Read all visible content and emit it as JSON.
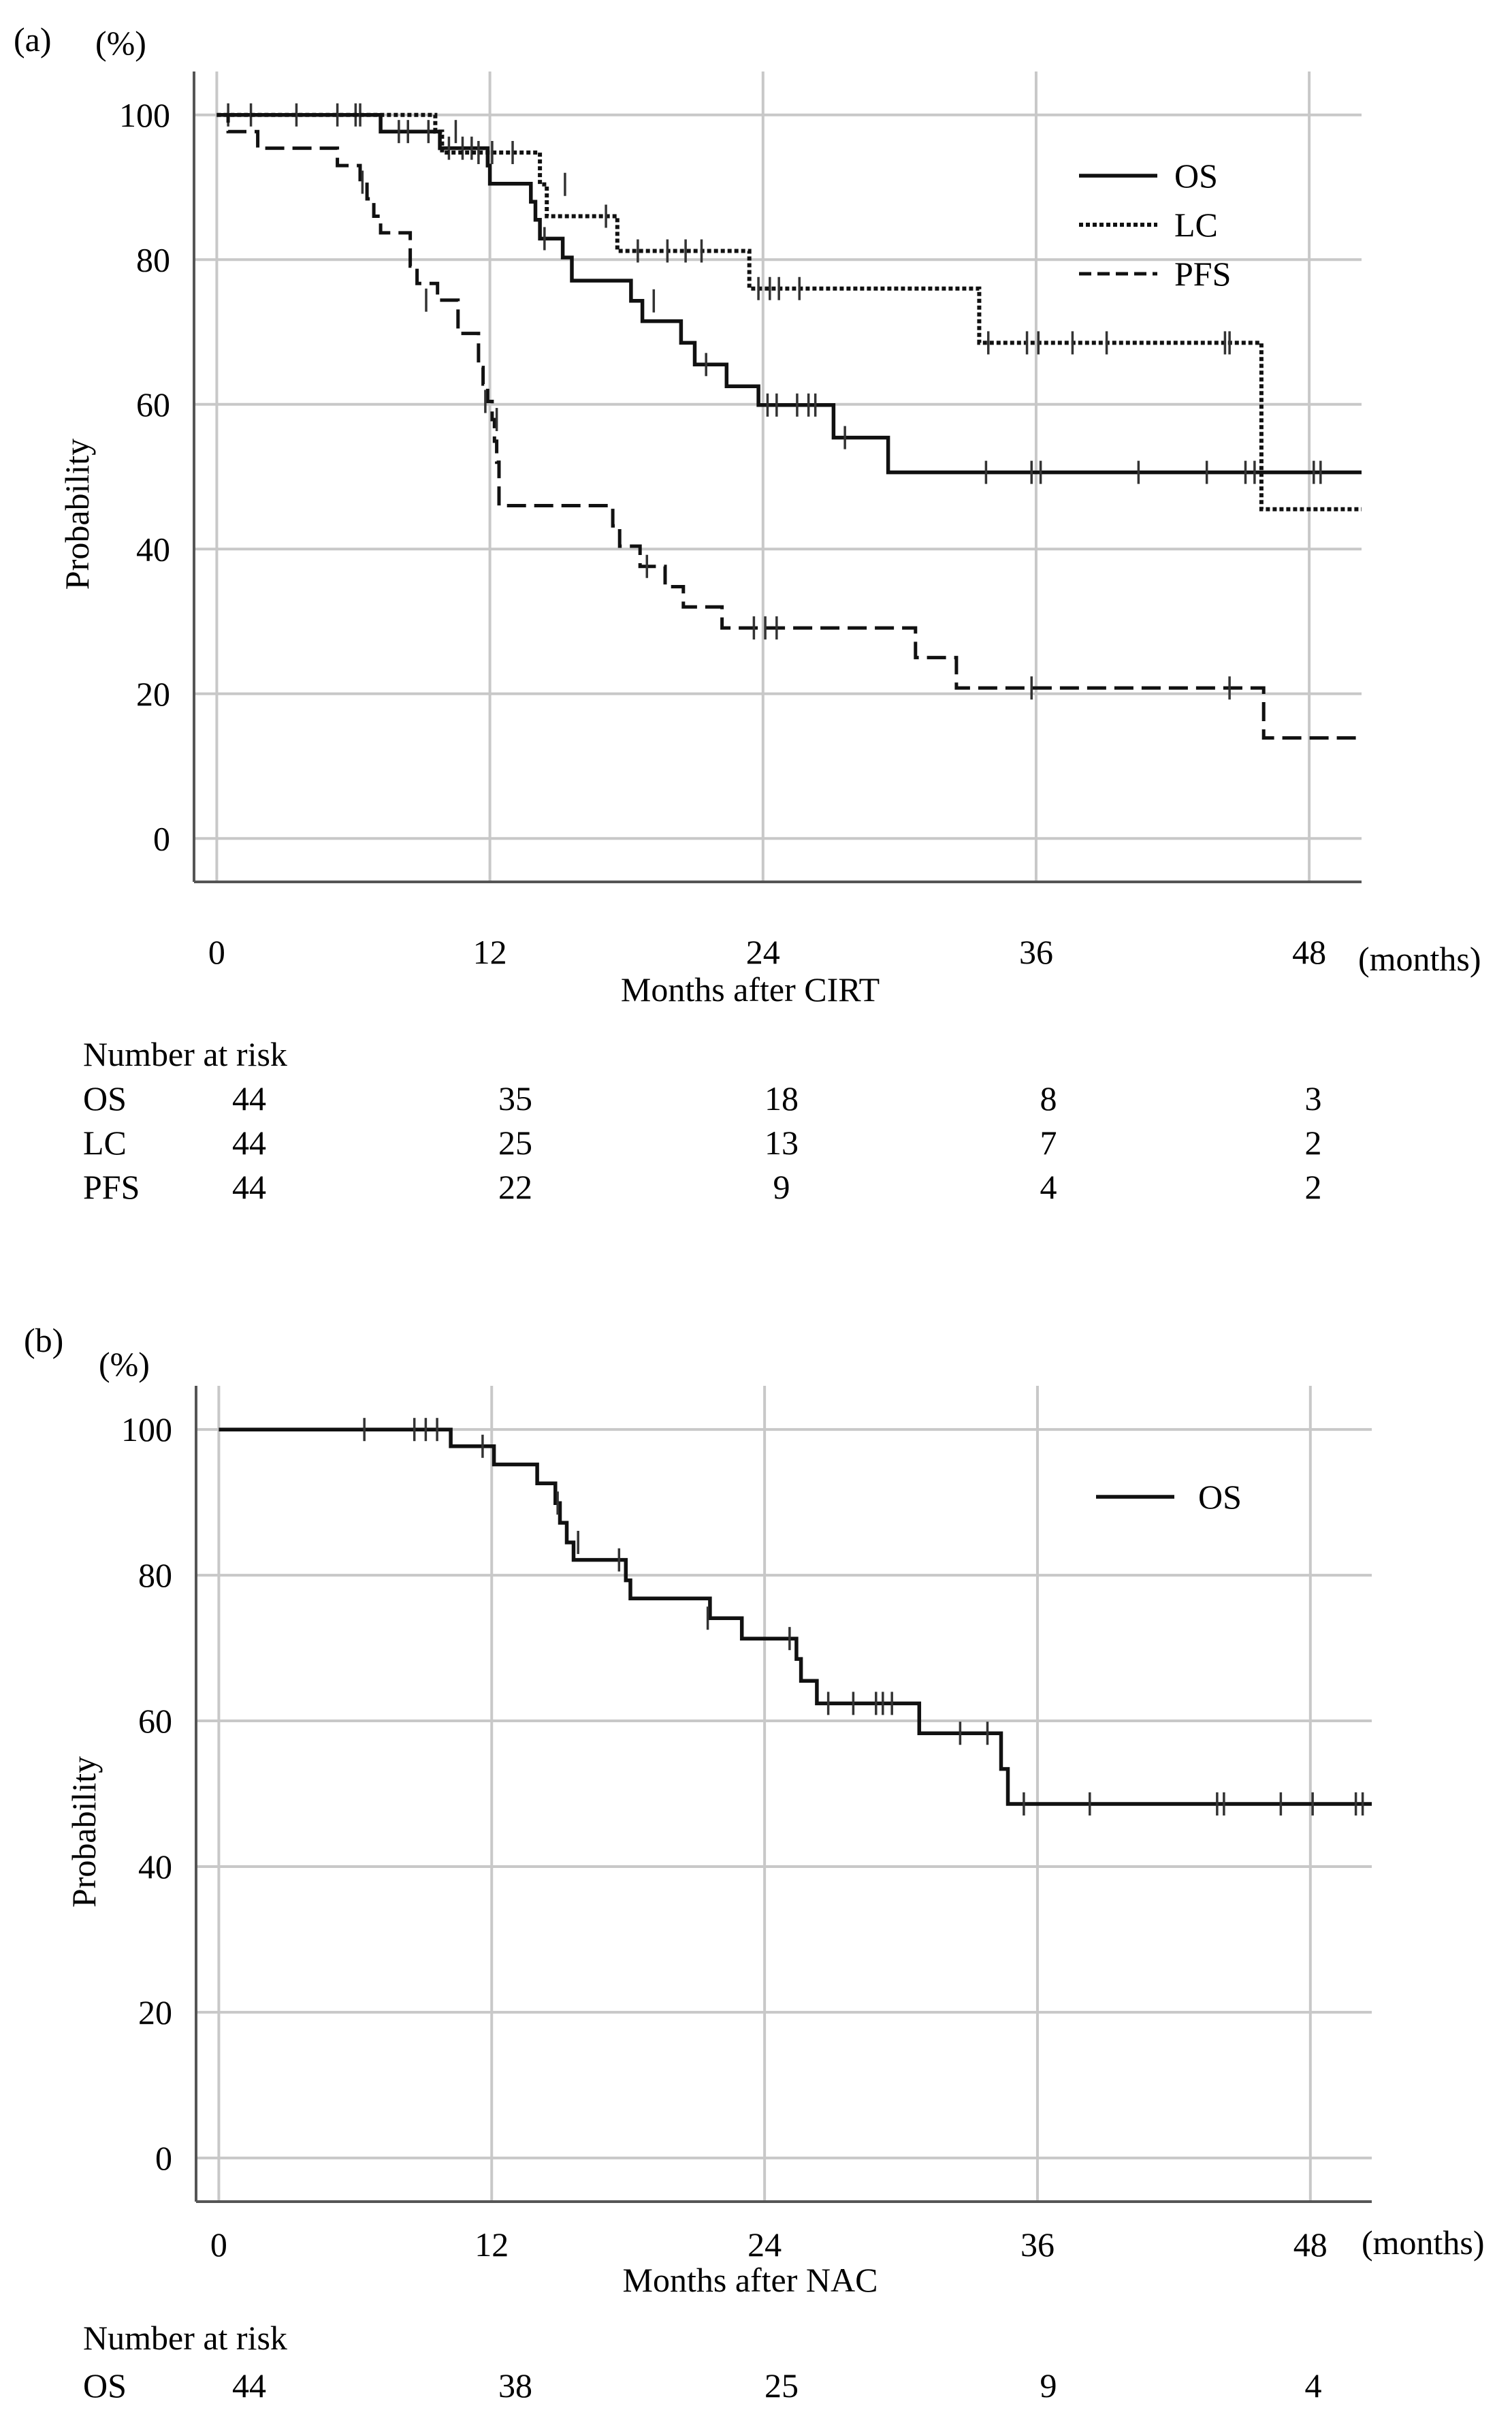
{
  "chart_data": [
    {
      "panel_label": "(a)",
      "type": "line",
      "step": true,
      "xlabel": "Months after CIRT",
      "x_unit": "(months)",
      "ylabel": "Probability",
      "y_unit": "(%)",
      "xlim": [
        -1,
        50.3
      ],
      "ylim": [
        -6,
        106
      ],
      "xticks": [
        0,
        12,
        24,
        36,
        48
      ],
      "yticks": [
        0,
        20,
        40,
        60,
        80,
        100
      ],
      "grid": true,
      "legend_position": "top-right",
      "legend_labels": [
        "OS",
        "LC",
        "PFS"
      ],
      "series": [
        {
          "name": "OS",
          "style": "solid",
          "steps": [
            [
              0,
              100
            ],
            [
              6.5,
              100
            ],
            [
              7.2,
              97.7
            ],
            [
              9.5,
              97.7
            ],
            [
              9.8,
              95.4
            ],
            [
              11.5,
              95.4
            ],
            [
              11.9,
              93
            ],
            [
              12,
              90.5
            ],
            [
              13,
              90.5
            ],
            [
              13.8,
              88
            ],
            [
              14,
              85.5
            ],
            [
              14.2,
              82.9
            ],
            [
              14.8,
              82.9
            ],
            [
              15.2,
              80.3
            ],
            [
              15.6,
              77.1
            ],
            [
              17.8,
              77.1
            ],
            [
              18.2,
              74.3
            ],
            [
              18.7,
              71.5
            ],
            [
              20.1,
              71.5
            ],
            [
              20.4,
              68.5
            ],
            [
              21,
              65.5
            ],
            [
              22,
              65.5
            ],
            [
              22.4,
              62.5
            ],
            [
              23.5,
              62.5
            ],
            [
              23.8,
              59.9
            ],
            [
              26.8,
              59.9
            ],
            [
              27.1,
              55.4
            ],
            [
              29.2,
              55.4
            ],
            [
              29.5,
              50.6
            ],
            [
              50.3,
              50.6
            ]
          ],
          "censored": [
            [
              0.5,
              100
            ],
            [
              1.5,
              100
            ],
            [
              3.5,
              100
            ],
            [
              5.3,
              100
            ],
            [
              6.1,
              100
            ],
            [
              6.3,
              100
            ],
            [
              8.0,
              97.7
            ],
            [
              8.4,
              97.7
            ],
            [
              9.3,
              97.7
            ],
            [
              10.2,
              95.4
            ],
            [
              10.8,
              95.4
            ],
            [
              11.2,
              95.4
            ],
            [
              14.4,
              82.9
            ],
            [
              19.2,
              74.3
            ],
            [
              21.5,
              65.5
            ],
            [
              24.2,
              59.9
            ],
            [
              24.6,
              59.9
            ],
            [
              25.5,
              59.9
            ],
            [
              26.0,
              59.9
            ],
            [
              26.3,
              59.9
            ],
            [
              27.6,
              55.4
            ],
            [
              33.8,
              50.6
            ],
            [
              35.8,
              50.6
            ],
            [
              36.2,
              50.6
            ],
            [
              40.5,
              50.6
            ],
            [
              43.5,
              50.6
            ],
            [
              45.2,
              50.6
            ],
            [
              45.6,
              50.6
            ],
            [
              48.2,
              50.6
            ],
            [
              48.5,
              50.6
            ]
          ]
        },
        {
          "name": "LC",
          "style": "dotted",
          "steps": [
            [
              0,
              100
            ],
            [
              9.3,
              100
            ],
            [
              9.6,
              97.7
            ],
            [
              9.9,
              94.8
            ],
            [
              13.9,
              94.8
            ],
            [
              14.2,
              90.4
            ],
            [
              14.5,
              86
            ],
            [
              17.3,
              86
            ],
            [
              17.6,
              81.2
            ],
            [
              23.2,
              81.2
            ],
            [
              23.4,
              76
            ],
            [
              33.2,
              76
            ],
            [
              33.5,
              68.5
            ],
            [
              45.6,
              68.5
            ],
            [
              45.9,
              45.5
            ],
            [
              50.3,
              45.5
            ]
          ],
          "censored": [
            [
              10.5,
              97.7
            ],
            [
              11.5,
              94.8
            ],
            [
              12.1,
              94.8
            ],
            [
              13.0,
              94.8
            ],
            [
              15.3,
              90.4
            ],
            [
              17.1,
              86
            ],
            [
              18.5,
              81.2
            ],
            [
              19.8,
              81.2
            ],
            [
              20.6,
              81.2
            ],
            [
              21.3,
              81.2
            ],
            [
              23.8,
              76
            ],
            [
              24.3,
              76
            ],
            [
              24.7,
              76
            ],
            [
              25.6,
              76
            ],
            [
              33.9,
              68.5
            ],
            [
              35.6,
              68.5
            ],
            [
              36.1,
              68.5
            ],
            [
              37.6,
              68.5
            ],
            [
              39.1,
              68.5
            ],
            [
              44.3,
              68.5
            ],
            [
              44.5,
              68.5
            ]
          ]
        },
        {
          "name": "PFS",
          "style": "dashed",
          "steps": [
            [
              0,
              100
            ],
            [
              0.5,
              97.7
            ],
            [
              1.8,
              95.4
            ],
            [
              5.2,
              95.4
            ],
            [
              5.3,
              93
            ],
            [
              6.1,
              93
            ],
            [
              6.3,
              90.7
            ],
            [
              6.6,
              88.4
            ],
            [
              6.9,
              86
            ],
            [
              7.2,
              83.7
            ],
            [
              8.2,
              83.7
            ],
            [
              8.5,
              79.1
            ],
            [
              8.8,
              76.7
            ],
            [
              9.5,
              76.7
            ],
            [
              9.7,
              74.4
            ],
            [
              10.4,
              74.4
            ],
            [
              10.6,
              69.8
            ],
            [
              11.3,
              69.8
            ],
            [
              11.5,
              65.1
            ],
            [
              11.7,
              62.8
            ],
            [
              11.9,
              60.4
            ],
            [
              12.1,
              57.9
            ],
            [
              12.2,
              54.9
            ],
            [
              12.3,
              52
            ],
            [
              12.4,
              46
            ],
            [
              17.2,
              46
            ],
            [
              17.4,
              43.2
            ],
            [
              17.7,
              40.4
            ],
            [
              18.4,
              40.4
            ],
            [
              18.6,
              37.6
            ],
            [
              19.5,
              37.6
            ],
            [
              19.7,
              34.8
            ],
            [
              20.3,
              34.8
            ],
            [
              20.5,
              32
            ],
            [
              21.9,
              32
            ],
            [
              22.2,
              29.1
            ],
            [
              30.4,
              29.1
            ],
            [
              30.7,
              25
            ],
            [
              32.2,
              25
            ],
            [
              32.5,
              20.8
            ],
            [
              45.8,
              20.8
            ],
            [
              46.0,
              13.9
            ],
            [
              50.3,
              13.9
            ]
          ],
          "censored": [
            [
              6.4,
              90.7
            ],
            [
              9.2,
              74.4
            ],
            [
              11.8,
              60.4
            ],
            [
              12.3,
              57.9
            ],
            [
              18.9,
              37.6
            ],
            [
              23.6,
              29.1
            ],
            [
              24.1,
              29.1
            ],
            [
              24.6,
              29.1
            ],
            [
              35.8,
              20.8
            ],
            [
              44.5,
              20.8
            ]
          ]
        }
      ],
      "number_at_risk": {
        "title": "Number at risk",
        "times": [
          0,
          12,
          24,
          36,
          48
        ],
        "rows": [
          {
            "label": "OS",
            "values": [
              "44",
              "35",
              "18",
              "8",
              "3"
            ]
          },
          {
            "label": "LC",
            "values": [
              "44",
              "25",
              "13",
              "7",
              "2"
            ]
          },
          {
            "label": "PFS",
            "values": [
              "44",
              "22",
              "9",
              "4",
              "2"
            ]
          }
        ]
      }
    },
    {
      "panel_label": "(b)",
      "type": "line",
      "step": true,
      "xlabel": "Months after NAC",
      "x_unit": "(months)",
      "ylabel": "Probability",
      "y_unit": "(%)",
      "xlim": [
        -1,
        50.7
      ],
      "ylim": [
        -6,
        106
      ],
      "xticks": [
        0,
        12,
        24,
        36,
        48
      ],
      "yticks": [
        0,
        20,
        40,
        60,
        80,
        100
      ],
      "grid": true,
      "legend_position": "top-right",
      "legend_labels": [
        "OS"
      ],
      "series": [
        {
          "name": "OS",
          "style": "solid",
          "steps": [
            [
              0,
              100
            ],
            [
              10,
              100
            ],
            [
              10.2,
              97.7
            ],
            [
              11.9,
              97.7
            ],
            [
              12.1,
              95.2
            ],
            [
              13.8,
              95.2
            ],
            [
              14,
              92.6
            ],
            [
              14.6,
              92.6
            ],
            [
              14.8,
              89.9
            ],
            [
              15.0,
              87.2
            ],
            [
              15.3,
              84.5
            ],
            [
              15.6,
              82.1
            ],
            [
              17.6,
              82.1
            ],
            [
              17.9,
              79.3
            ],
            [
              18.1,
              76.8
            ],
            [
              21.3,
              76.8
            ],
            [
              21.6,
              74.1
            ],
            [
              22.8,
              74.1
            ],
            [
              23.0,
              71.3
            ],
            [
              25.2,
              71.3
            ],
            [
              25.4,
              68.5
            ],
            [
              25.6,
              65.5
            ],
            [
              26.1,
              65.5
            ],
            [
              26.3,
              62.4
            ],
            [
              30.6,
              62.4
            ],
            [
              30.8,
              58.3
            ],
            [
              34.2,
              58.3
            ],
            [
              34.4,
              53.4
            ],
            [
              34.7,
              48.6
            ],
            [
              50.7,
              48.6
            ]
          ],
          "censored": [
            [
              6.4,
              100
            ],
            [
              8.6,
              100
            ],
            [
              9.1,
              100
            ],
            [
              9.6,
              100
            ],
            [
              11.6,
              97.7
            ],
            [
              14.9,
              89.9
            ],
            [
              15.8,
              84.5
            ],
            [
              17.6,
              82.1
            ],
            [
              21.5,
              74.1
            ],
            [
              25.1,
              71.3
            ],
            [
              26.8,
              62.4
            ],
            [
              27.9,
              62.4
            ],
            [
              28.9,
              62.4
            ],
            [
              29.2,
              62.4
            ],
            [
              29.6,
              62.4
            ],
            [
              32.6,
              58.3
            ],
            [
              33.8,
              58.3
            ],
            [
              35.4,
              48.6
            ],
            [
              38.3,
              48.6
            ],
            [
              43.9,
              48.6
            ],
            [
              44.2,
              48.6
            ],
            [
              46.7,
              48.6
            ],
            [
              48.1,
              48.6
            ],
            [
              50.0,
              48.6
            ],
            [
              50.3,
              48.6
            ]
          ]
        }
      ],
      "number_at_risk": {
        "title": "Number at risk",
        "times": [
          0,
          12,
          24,
          36,
          48
        ],
        "rows": [
          {
            "label": "OS",
            "values": [
              "44",
              "38",
              "25",
              "9",
              "4"
            ]
          }
        ]
      }
    }
  ]
}
